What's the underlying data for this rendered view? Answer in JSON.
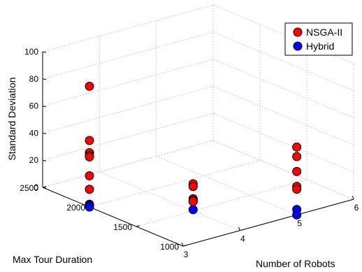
{
  "chart_data": {
    "type": "scatter",
    "projection": "3d",
    "xlabel": "Max Tour Duration",
    "ylabel": "Number of Robots",
    "zlabel": "Standard Deviation",
    "xlim": [
      1000,
      2500
    ],
    "ylim": [
      3,
      6
    ],
    "zlim": [
      0,
      100
    ],
    "x_ticks": [
      "1000",
      "1500",
      "2000",
      "2500"
    ],
    "y_ticks": [
      "3",
      "4",
      "5",
      "6"
    ],
    "z_ticks": [
      "0",
      "20",
      "40",
      "60",
      "80",
      "100"
    ],
    "grid": true,
    "legend_position": "top-right",
    "series": [
      {
        "name": "NSGA-II",
        "color": "#ff0000",
        "points": [
          {
            "x": 2000,
            "y": 3,
            "z": 89
          },
          {
            "x": 2000,
            "y": 3,
            "z": 49
          },
          {
            "x": 2000,
            "y": 3,
            "z": 40
          },
          {
            "x": 2000,
            "y": 3,
            "z": 38
          },
          {
            "x": 2000,
            "y": 3,
            "z": 37
          },
          {
            "x": 2000,
            "y": 3,
            "z": 23
          },
          {
            "x": 2000,
            "y": 3,
            "z": 13
          },
          {
            "x": 1500,
            "y": 4,
            "z": 20
          },
          {
            "x": 1500,
            "y": 4,
            "z": 18
          },
          {
            "x": 1500,
            "y": 4,
            "z": 9
          },
          {
            "x": 1500,
            "y": 4,
            "z": 8
          },
          {
            "x": 1500,
            "y": 4,
            "z": 7
          },
          {
            "x": 1500,
            "y": 4,
            "z": 7
          },
          {
            "x": 1000,
            "y": 5,
            "z": 50
          },
          {
            "x": 1000,
            "y": 5,
            "z": 43
          },
          {
            "x": 1000,
            "y": 5,
            "z": 32
          },
          {
            "x": 1000,
            "y": 5,
            "z": 21
          },
          {
            "x": 1000,
            "y": 5,
            "z": 19
          }
        ]
      },
      {
        "name": "Hybrid",
        "color": "#0000ff",
        "points": [
          {
            "x": 2000,
            "y": 3,
            "z": 2
          },
          {
            "x": 2000,
            "y": 3,
            "z": 1
          },
          {
            "x": 2000,
            "y": 3,
            "z": 0
          },
          {
            "x": 1500,
            "y": 4,
            "z": 1
          },
          {
            "x": 1000,
            "y": 5,
            "z": 4
          },
          {
            "x": 1000,
            "y": 5,
            "z": 0
          }
        ]
      }
    ]
  }
}
